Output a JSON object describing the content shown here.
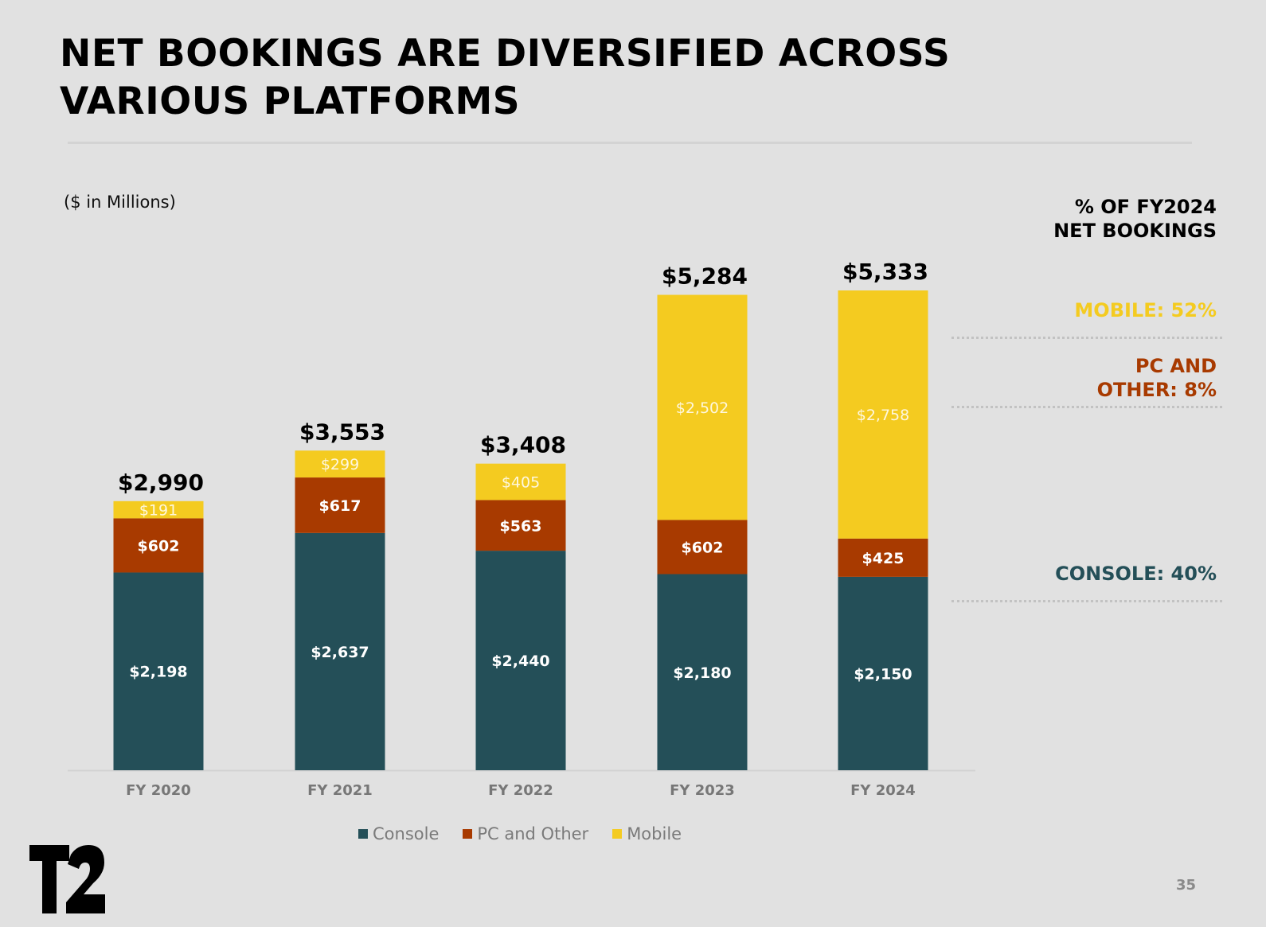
{
  "header": {
    "title": "NET BOOKINGS ARE DIVERSIFIED ACROSS VARIOUS PLATFORMS",
    "units": "($ in Millions)"
  },
  "side_panel": {
    "heading_line1": "% OF FY2024",
    "heading_line2": "NET BOOKINGS",
    "mobile": "MOBILE: 52%",
    "pc_line1": "PC AND",
    "pc_line2": "OTHER: 8%",
    "console": "CONSOLE: 40%"
  },
  "colors": {
    "console": "#244f58",
    "pc": "#a83a00",
    "mobile": "#f4cb20",
    "background": "#e1e1e1"
  },
  "chart_data": {
    "type": "bar",
    "stacked": true,
    "categories": [
      "FY 2020",
      "FY 2021",
      "FY 2022",
      "FY 2023",
      "FY 2024"
    ],
    "series": [
      {
        "name": "Console",
        "values": [
          2198,
          2637,
          2440,
          2180,
          2150
        ],
        "labels": [
          "$2,198",
          "$2,637",
          "$2,440",
          "$2,180",
          "$2,150"
        ]
      },
      {
        "name": "PC and Other",
        "values": [
          602,
          617,
          563,
          602,
          425
        ],
        "labels": [
          "$602",
          "$617",
          "$563",
          "$602",
          "$425"
        ]
      },
      {
        "name": "Mobile",
        "values": [
          191,
          299,
          405,
          2502,
          2758
        ],
        "labels": [
          "$191",
          "$299",
          "$405",
          "$2,502",
          "$2,758"
        ]
      }
    ],
    "totals": [
      2990,
      3553,
      3408,
      5284,
      5333
    ],
    "total_labels": [
      "$2,990",
      "$3,553",
      "$3,408",
      "$5,284",
      "$5,333"
    ],
    "ylim": [
      0,
      5333
    ],
    "grid": false,
    "legend_position": "bottom"
  },
  "legend": {
    "console": "Console",
    "pc": "PC and Other",
    "mobile": "Mobile"
  },
  "footer": {
    "logo_text": "T2",
    "page_number": "35"
  }
}
